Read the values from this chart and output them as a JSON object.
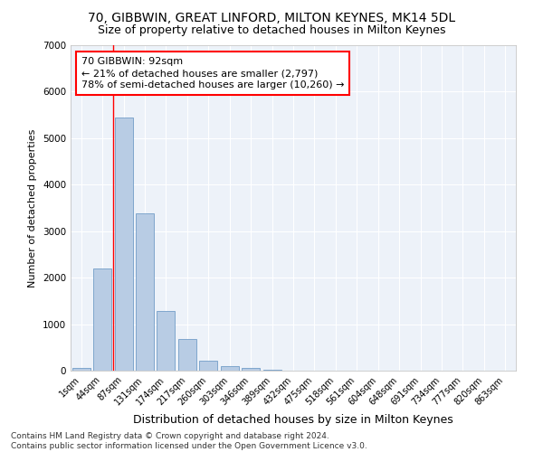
{
  "title": "70, GIBBWIN, GREAT LINFORD, MILTON KEYNES, MK14 5DL",
  "subtitle": "Size of property relative to detached houses in Milton Keynes",
  "xlabel": "Distribution of detached houses by size in Milton Keynes",
  "ylabel": "Number of detached properties",
  "bar_color": "#b8cce4",
  "bar_edge_color": "#5f8fbf",
  "categories": [
    "1sqm",
    "44sqm",
    "87sqm",
    "131sqm",
    "174sqm",
    "217sqm",
    "260sqm",
    "303sqm",
    "346sqm",
    "389sqm",
    "432sqm",
    "475sqm",
    "518sqm",
    "561sqm",
    "604sqm",
    "648sqm",
    "691sqm",
    "734sqm",
    "777sqm",
    "820sqm",
    "863sqm"
  ],
  "values": [
    60,
    2200,
    5450,
    3380,
    1290,
    680,
    210,
    100,
    50,
    15,
    5,
    5,
    3,
    3,
    3,
    3,
    3,
    3,
    3,
    3,
    3
  ],
  "ylim": [
    0,
    7000
  ],
  "yticks": [
    0,
    1000,
    2000,
    3000,
    4000,
    5000,
    6000,
    7000
  ],
  "annotation_text": "70 GIBBWIN: 92sqm\n← 21% of detached houses are smaller (2,797)\n78% of semi-detached houses are larger (10,260) →",
  "vline_x": 1.5,
  "annotation_box_color": "white",
  "annotation_box_edge_color": "red",
  "vline_color": "red",
  "footer_text": "Contains HM Land Registry data © Crown copyright and database right 2024.\nContains public sector information licensed under the Open Government Licence v3.0.",
  "bg_color": "#edf2f9",
  "grid_color": "white",
  "title_fontsize": 10,
  "subtitle_fontsize": 9,
  "annotation_fontsize": 8,
  "footer_fontsize": 6.5,
  "ylabel_fontsize": 8,
  "xlabel_fontsize": 9,
  "tick_fontsize": 7
}
